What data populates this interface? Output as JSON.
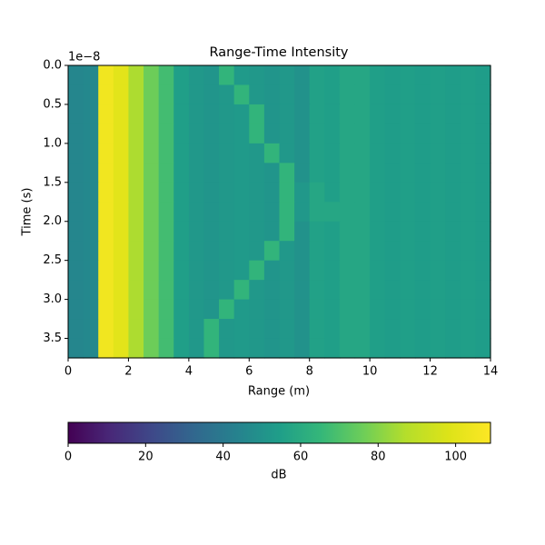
{
  "chart_data": {
    "type": "heatmap",
    "title": "Range-Time Intensity",
    "x_label": "Range (m)",
    "y_label": "Time (s)",
    "y_offset_label": "1e−8",
    "xlim": [
      0,
      14
    ],
    "xticks": [
      0,
      2,
      4,
      6,
      8,
      10,
      12,
      14
    ],
    "ylim": [
      3.75,
      0
    ],
    "yticks": [
      {
        "value": 0,
        "label": "0.0"
      },
      {
        "value": 0.5,
        "label": "0.5"
      },
      {
        "value": 1,
        "label": "1.0"
      },
      {
        "value": 1.5,
        "label": "1.5"
      },
      {
        "value": 2,
        "label": "2.0"
      },
      {
        "value": 2.5,
        "label": "2.5"
      },
      {
        "value": 3,
        "label": "3.0"
      },
      {
        "value": 3.5,
        "label": "3.5"
      }
    ],
    "colormap": "viridis",
    "clim": [
      0,
      109
    ],
    "cticks": [
      0,
      20,
      40,
      60,
      80,
      100
    ],
    "colorbar_label": "dB",
    "z": [
      [
        45,
        46,
        105,
        100,
        86,
        76,
        68,
        55,
        52,
        51,
        64,
        53,
        52,
        51,
        52,
        50,
        56,
        55,
        58,
        58,
        55,
        54,
        55,
        54,
        55,
        54,
        55,
        54
      ],
      [
        45,
        46,
        105,
        100,
        86,
        76,
        68,
        55,
        52,
        51,
        52,
        64,
        52,
        51,
        52,
        50,
        56,
        55,
        58,
        58,
        55,
        54,
        55,
        54,
        55,
        54,
        55,
        54
      ],
      [
        45,
        46,
        105,
        100,
        86,
        76,
        68,
        55,
        52,
        51,
        52,
        53,
        64,
        51,
        52,
        50,
        56,
        55,
        58,
        58,
        55,
        54,
        55,
        54,
        55,
        54,
        55,
        54
      ],
      [
        45,
        46,
        105,
        100,
        86,
        76,
        68,
        55,
        52,
        51,
        52,
        53,
        64,
        51,
        52,
        50,
        56,
        55,
        58,
        58,
        55,
        54,
        55,
        54,
        55,
        54,
        55,
        54
      ],
      [
        45,
        46,
        105,
        100,
        86,
        76,
        68,
        55,
        52,
        51,
        52,
        53,
        52,
        64,
        52,
        50,
        56,
        55,
        58,
        58,
        55,
        54,
        55,
        54,
        55,
        54,
        55,
        54
      ],
      [
        45,
        46,
        105,
        100,
        86,
        76,
        68,
        55,
        52,
        51,
        52,
        53,
        52,
        51,
        64,
        50,
        56,
        55,
        58,
        58,
        55,
        54,
        55,
        54,
        55,
        54,
        55,
        54
      ],
      [
        45,
        46,
        105,
        100,
        86,
        76,
        68,
        55,
        52,
        51,
        52,
        53,
        52,
        51,
        64,
        52,
        58,
        55,
        58,
        58,
        55,
        54,
        55,
        54,
        55,
        54,
        55,
        54
      ],
      [
        45,
        46,
        105,
        100,
        86,
        76,
        68,
        55,
        52,
        51,
        52,
        53,
        52,
        51,
        64,
        52,
        58,
        58,
        58,
        58,
        55,
        54,
        55,
        54,
        55,
        54,
        55,
        54
      ],
      [
        45,
        46,
        105,
        100,
        86,
        76,
        68,
        55,
        52,
        51,
        52,
        53,
        52,
        51,
        64,
        50,
        56,
        55,
        58,
        58,
        55,
        54,
        55,
        54,
        55,
        54,
        55,
        54
      ],
      [
        45,
        46,
        105,
        100,
        86,
        76,
        68,
        55,
        52,
        51,
        52,
        53,
        52,
        64,
        52,
        50,
        56,
        55,
        58,
        58,
        55,
        54,
        55,
        54,
        55,
        54,
        55,
        54
      ],
      [
        45,
        46,
        105,
        100,
        86,
        76,
        68,
        55,
        52,
        51,
        52,
        53,
        64,
        51,
        52,
        50,
        56,
        55,
        58,
        58,
        55,
        54,
        55,
        54,
        55,
        54,
        55,
        54
      ],
      [
        45,
        46,
        105,
        100,
        86,
        76,
        68,
        55,
        52,
        51,
        52,
        64,
        52,
        51,
        52,
        50,
        56,
        55,
        58,
        58,
        55,
        54,
        55,
        54,
        55,
        54,
        55,
        54
      ],
      [
        45,
        46,
        105,
        100,
        86,
        76,
        68,
        55,
        52,
        51,
        64,
        53,
        52,
        51,
        52,
        50,
        56,
        55,
        58,
        58,
        55,
        54,
        55,
        54,
        55,
        54,
        55,
        54
      ],
      [
        45,
        46,
        105,
        100,
        86,
        76,
        68,
        55,
        52,
        64,
        52,
        53,
        52,
        51,
        52,
        50,
        56,
        55,
        58,
        58,
        55,
        54,
        55,
        54,
        55,
        54,
        55,
        54
      ],
      [
        45,
        46,
        105,
        100,
        86,
        76,
        68,
        55,
        52,
        64,
        52,
        53,
        52,
        51,
        52,
        50,
        56,
        55,
        58,
        58,
        55,
        54,
        55,
        54,
        55,
        54,
        55,
        54
      ]
    ]
  }
}
